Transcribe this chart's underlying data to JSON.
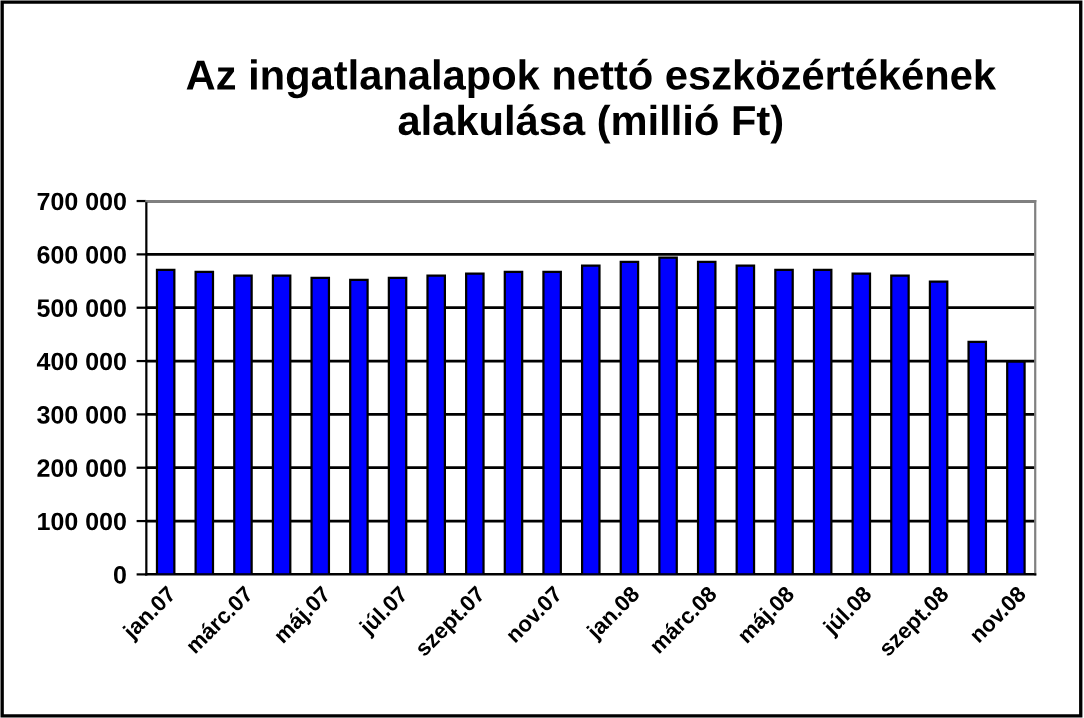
{
  "chart_data": {
    "type": "bar",
    "title": "Az ingatlanalapok nettó eszközértékének alakulása (millió Ft)",
    "categories": [
      "jan.07",
      null,
      "márc.07",
      null,
      "máj.07",
      null,
      "júl.07",
      null,
      "szept.07",
      null,
      "nov.07",
      null,
      "jan.08",
      null,
      "márc.08",
      null,
      "máj.08",
      null,
      "júl.08",
      null,
      "szept.08",
      null,
      "nov.08"
    ],
    "values": [
      571000,
      567000,
      560000,
      560000,
      556000,
      552000,
      556000,
      560000,
      564000,
      567000,
      567000,
      579000,
      586000,
      594000,
      586000,
      579000,
      571000,
      571000,
      564000,
      560000,
      549000,
      436000,
      399000
    ],
    "color": "#0000ff",
    "ylim": [
      0,
      700000
    ],
    "yticks": [
      {
        "value": 0,
        "label": "0"
      },
      {
        "value": 100000,
        "label": "100 000"
      },
      {
        "value": 200000,
        "label": "200 000"
      },
      {
        "value": 300000,
        "label": "300 000"
      },
      {
        "value": 400000,
        "label": "400 000"
      },
      {
        "value": 500000,
        "label": "500 000"
      },
      {
        "value": 600000,
        "label": "600 000"
      },
      {
        "value": 700000,
        "label": "700 000"
      }
    ],
    "grid": "y"
  }
}
